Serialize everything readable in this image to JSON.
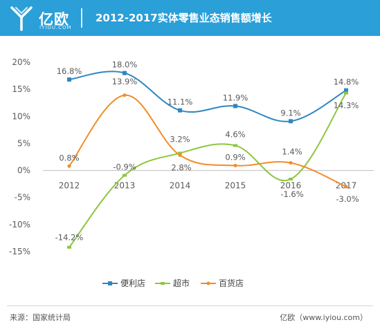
{
  "header": {
    "brand_name": "亿欧",
    "brand_domain": "IYIOU.COM",
    "title": "2012-2017实体零售业态销售额增长"
  },
  "footer": {
    "source": "来源：国家统计局",
    "brand": "亿欧（www.iyiou.com）"
  },
  "colors": {
    "header_bg": "#2a9fd8",
    "series_blue": "#2e86c1",
    "series_green": "#8cc63f",
    "series_orange": "#f28c28"
  },
  "chart_data": {
    "type": "line",
    "x": [
      "2012",
      "2013",
      "2014",
      "2015",
      "2016",
      "2017"
    ],
    "ylim": [
      -15,
      20
    ],
    "yticks": [
      "20%",
      "15%",
      "10%",
      "5%",
      "0%",
      "-5%",
      "-10%",
      "-15%"
    ],
    "ytick_values": [
      20,
      15,
      10,
      5,
      0,
      -5,
      -10,
      -15
    ],
    "grid": false,
    "legend_position": "bottom",
    "series": [
      {
        "name": "便利店",
        "color": "#2e86c1",
        "marker": "square",
        "values": [
          16.8,
          18.0,
          11.1,
          11.9,
          9.1,
          14.8
        ],
        "labels": [
          "16.8%",
          "18.0%",
          "11.1%",
          "11.9%",
          "9.1%",
          "14.8%"
        ]
      },
      {
        "name": "超市",
        "color": "#8cc63f",
        "marker": "dash",
        "values": [
          -14.2,
          -0.9,
          3.2,
          4.6,
          -1.6,
          14.3
        ],
        "labels": [
          "-14.2%",
          "-0.9%",
          "3.2%",
          "4.6%",
          "-1.6%",
          "14.3%"
        ]
      },
      {
        "name": "百货店",
        "color": "#f28c28",
        "marker": "dot",
        "values": [
          0.8,
          13.9,
          2.8,
          0.9,
          1.4,
          -3.0
        ],
        "labels": [
          "0.8%",
          "13.9%",
          "2.8%",
          "0.9%",
          "1.4%",
          "-3.0%"
        ]
      }
    ]
  }
}
